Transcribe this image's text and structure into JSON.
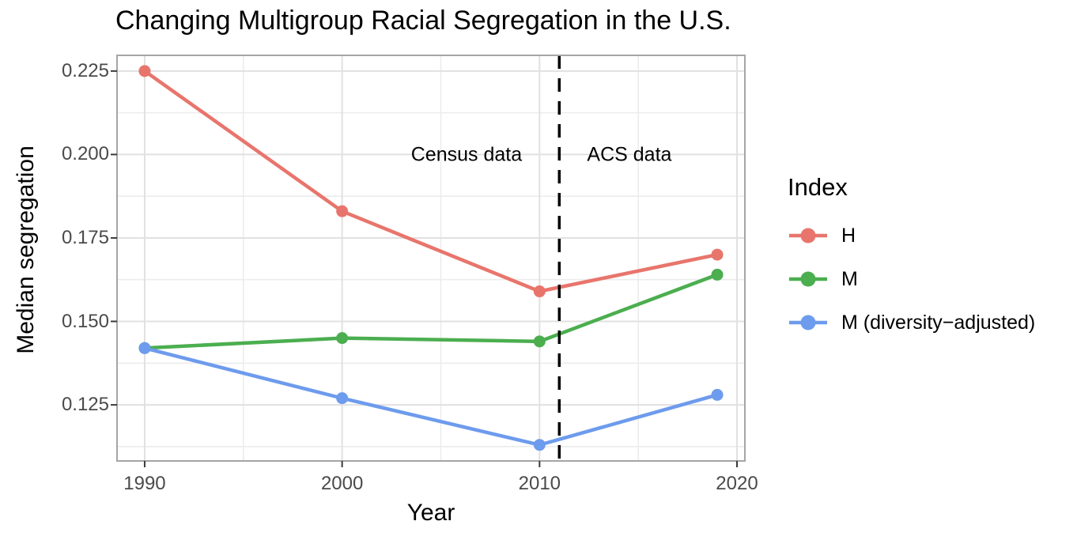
{
  "title": "Changing Multigroup Racial Segregation in the U.S.",
  "chart_data": {
    "type": "line",
    "x": [
      1990,
      2000,
      2010,
      2019
    ],
    "series": [
      {
        "name": "H",
        "color": "#E8756C",
        "values": [
          0.225,
          0.183,
          0.159,
          0.17
        ]
      },
      {
        "name": "M",
        "color": "#4BAE4F",
        "values": [
          0.142,
          0.145,
          0.144,
          0.164
        ]
      },
      {
        "name": "M (diversity−adjusted)",
        "color": "#6D9BED",
        "values": [
          0.142,
          0.127,
          0.113,
          0.128
        ]
      }
    ],
    "xlabel": "Year",
    "ylabel": "Median segregation",
    "xlim": [
      1988.6,
      2020.4
    ],
    "ylim": [
      0.1082,
      0.2297
    ],
    "xticks": {
      "major": [
        1990,
        2000,
        2010,
        2020
      ],
      "minor": [
        1995,
        2005,
        2015
      ]
    },
    "yticks": {
      "major": [
        0.225,
        0.2,
        0.175,
        0.15,
        0.125
      ],
      "minor": [
        0.2125,
        0.1875,
        0.1625,
        0.1375,
        0.1125
      ],
      "decimals": 3
    },
    "vline": {
      "x": 2011,
      "style": "dashed",
      "color": "#000000"
    },
    "annotations": [
      {
        "text": "Census data",
        "x": 2006.3,
        "y": 0.1998
      },
      {
        "text": "ACS data",
        "x": 2014.55,
        "y": 0.1998
      }
    ],
    "legend": {
      "title": "Index",
      "position": "right"
    },
    "grid": true
  }
}
